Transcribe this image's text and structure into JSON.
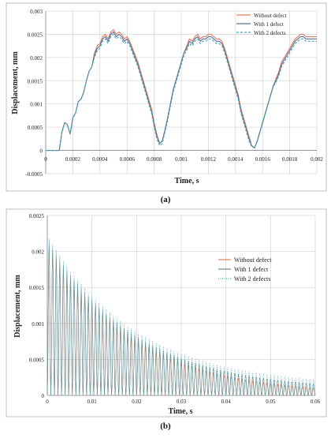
{
  "figure": {
    "panel_a_label": "(a)",
    "panel_b_label": "(b)"
  },
  "chart_data": [
    {
      "type": "line",
      "xlabel": "Time, s",
      "ylabel": "Displacement, mm",
      "xlim": [
        0,
        0.002
      ],
      "ylim": [
        -0.0005,
        0.003
      ],
      "x_ticks": [
        "0",
        "0.0002",
        "0.0004",
        "0.0006",
        "0.0008",
        "0.001",
        "0.0012",
        "0.0014",
        "0.0016",
        "0.0018",
        "0.002"
      ],
      "y_ticks": [
        "-0.0005",
        "0",
        "0.0005",
        "0.001",
        "0.0015",
        "0.002",
        "0.0025",
        "0.003"
      ],
      "grid": true,
      "legend_position": "top-right",
      "x": [
        0,
        0.0001,
        0.00012,
        0.00014,
        0.00016,
        0.00018,
        0.0002,
        0.00022,
        0.00024,
        0.00026,
        0.00028,
        0.0003,
        0.00032,
        0.00034,
        0.00036,
        0.00038,
        0.0004,
        0.00042,
        0.00044,
        0.00046,
        0.00048,
        0.0005,
        0.00052,
        0.00054,
        0.00056,
        0.00058,
        0.0006,
        0.00062,
        0.00064,
        0.00066,
        0.00068,
        0.0007,
        0.00072,
        0.00074,
        0.00076,
        0.00078,
        0.0008,
        0.00082,
        0.00084,
        0.00086,
        0.00088,
        0.0009,
        0.00092,
        0.00094,
        0.00096,
        0.00098,
        0.001,
        0.00102,
        0.00104,
        0.00106,
        0.00108,
        0.0011,
        0.00112,
        0.00114,
        0.00116,
        0.00118,
        0.0012,
        0.00122,
        0.00124,
        0.00126,
        0.00128,
        0.0013,
        0.00132,
        0.00134,
        0.00136,
        0.00138,
        0.0014,
        0.00142,
        0.00144,
        0.00146,
        0.00148,
        0.0015,
        0.00152,
        0.00154,
        0.00156,
        0.00158,
        0.0016,
        0.00162,
        0.00164,
        0.00166,
        0.00168,
        0.0017,
        0.00172,
        0.00174,
        0.00176,
        0.00178,
        0.0018,
        0.00182,
        0.00184,
        0.00186,
        0.00188,
        0.0019,
        0.00192,
        0.00194,
        0.00196,
        0.00198,
        0.002
      ],
      "series": [
        {
          "name": "Without defect",
          "color": "#e07a5f",
          "dash": "solid",
          "values": [
            0,
            0,
            0.0004,
            0.0006,
            0.00055,
            0.00035,
            0.0007,
            0.0008,
            0.00105,
            0.0011,
            0.00125,
            0.0015,
            0.0017,
            0.0018,
            0.0021,
            0.00225,
            0.0023,
            0.00245,
            0.0025,
            0.0024,
            0.00255,
            0.0026,
            0.0025,
            0.00255,
            0.0025,
            0.0024,
            0.00245,
            0.00235,
            0.0022,
            0.00205,
            0.0019,
            0.0017,
            0.0015,
            0.0013,
            0.0011,
            0.0009,
            0.0006,
            0.00035,
            0.00015,
            0.0002,
            0.00045,
            0.0007,
            0.001,
            0.0013,
            0.0015,
            0.0017,
            0.0019,
            0.0021,
            0.00225,
            0.0024,
            0.00235,
            0.00245,
            0.0025,
            0.0024,
            0.00245,
            0.00245,
            0.0025,
            0.0025,
            0.00245,
            0.0024,
            0.0024,
            0.00235,
            0.0022,
            0.002,
            0.0018,
            0.0016,
            0.0014,
            0.0012,
            0.0009,
            0.0007,
            0.0005,
            0.0003,
            0.0001,
            5e-05,
            0.0002,
            0.0004,
            0.0006,
            0.0008,
            0.001,
            0.0012,
            0.0014,
            0.00155,
            0.0017,
            0.0019,
            0.002,
            0.0021,
            0.0022,
            0.0023,
            0.0024,
            0.00245,
            0.0025,
            0.0025,
            0.00245,
            0.00245,
            0.00245,
            0.00245,
            0.00245
          ]
        },
        {
          "name": "With 1 defect",
          "color": "#5b6f9a",
          "dash": "solid",
          "values": [
            0,
            0,
            0.0004,
            0.0006,
            0.00055,
            0.00035,
            0.0007,
            0.0008,
            0.00105,
            0.0011,
            0.00125,
            0.0015,
            0.0017,
            0.0018,
            0.00205,
            0.0022,
            0.00225,
            0.0024,
            0.00245,
            0.00235,
            0.0025,
            0.00255,
            0.00245,
            0.0025,
            0.00245,
            0.00235,
            0.0024,
            0.0023,
            0.00215,
            0.002,
            0.00185,
            0.00165,
            0.00145,
            0.00125,
            0.00105,
            0.00085,
            0.00055,
            0.0003,
            0.00015,
            0.0002,
            0.00045,
            0.0007,
            0.001,
            0.0013,
            0.0015,
            0.0017,
            0.0019,
            0.0021,
            0.0022,
            0.00235,
            0.0023,
            0.0024,
            0.00245,
            0.00235,
            0.0024,
            0.0024,
            0.00245,
            0.00245,
            0.0024,
            0.00235,
            0.00235,
            0.0023,
            0.00215,
            0.00195,
            0.00175,
            0.00155,
            0.00135,
            0.00115,
            0.00085,
            0.00065,
            0.00045,
            0.00025,
            0.0001,
            5e-05,
            0.0002,
            0.0004,
            0.0006,
            0.0008,
            0.001,
            0.0012,
            0.0014,
            0.0015,
            0.00165,
            0.00185,
            0.00195,
            0.00205,
            0.00215,
            0.00225,
            0.00235,
            0.0024,
            0.00245,
            0.00245,
            0.0024,
            0.0024,
            0.0024,
            0.0024,
            0.0024
          ]
        },
        {
          "name": "With 2 defects",
          "color": "#4aa8b8",
          "dash": "dashed",
          "values": [
            0,
            0,
            0.0004,
            0.0006,
            0.00055,
            0.00035,
            0.0007,
            0.0008,
            0.00105,
            0.0011,
            0.00125,
            0.0015,
            0.0017,
            0.0018,
            0.002,
            0.00215,
            0.0022,
            0.00235,
            0.0024,
            0.0023,
            0.00245,
            0.0025,
            0.0024,
            0.00245,
            0.0024,
            0.0023,
            0.00235,
            0.00225,
            0.0021,
            0.00195,
            0.0018,
            0.0016,
            0.0014,
            0.0012,
            0.001,
            0.0008,
            0.0005,
            0.00025,
            0.0001,
            0.00015,
            0.0004,
            0.00065,
            0.00095,
            0.00125,
            0.00145,
            0.00165,
            0.00185,
            0.00205,
            0.00215,
            0.0023,
            0.00225,
            0.00235,
            0.0024,
            0.0023,
            0.00235,
            0.00235,
            0.0024,
            0.0024,
            0.00235,
            0.0023,
            0.0023,
            0.00225,
            0.0021,
            0.0019,
            0.0017,
            0.0015,
            0.0013,
            0.0011,
            0.0008,
            0.0006,
            0.0004,
            0.0002,
            8e-05,
            5e-05,
            0.00018,
            0.00038,
            0.00058,
            0.00078,
            0.00098,
            0.00118,
            0.00138,
            0.00148,
            0.0016,
            0.0018,
            0.0019,
            0.002,
            0.0021,
            0.0022,
            0.0023,
            0.00235,
            0.0024,
            0.0024,
            0.00235,
            0.00235,
            0.00235,
            0.00235,
            0.00235
          ]
        }
      ]
    },
    {
      "type": "line",
      "xlabel": "Time, s",
      "ylabel": "Displacement, mm",
      "xlim": [
        0,
        0.06
      ],
      "ylim": [
        0,
        0.0025
      ],
      "x_ticks": [
        "0",
        "0.01",
        "0.02",
        "0.03",
        "0.04",
        "0.05",
        "0.06"
      ],
      "y_ticks": [
        "0",
        "0.0005",
        "0.001",
        "0.0015",
        "0.002",
        "0.0025"
      ],
      "grid": true,
      "legend_position": "right",
      "peak_amplitude": 0.0021,
      "final_amplitude": 0.0001,
      "num_cycles": 75,
      "series": [
        {
          "name": "Without defect",
          "color": "#e07a5f",
          "dash": "solid"
        },
        {
          "name": "With 1 defect",
          "color": "#6a8a8a",
          "dash": "solid"
        },
        {
          "name": "With 2 defects",
          "color": "#4aa8b8",
          "dash": "dotted"
        }
      ]
    }
  ]
}
